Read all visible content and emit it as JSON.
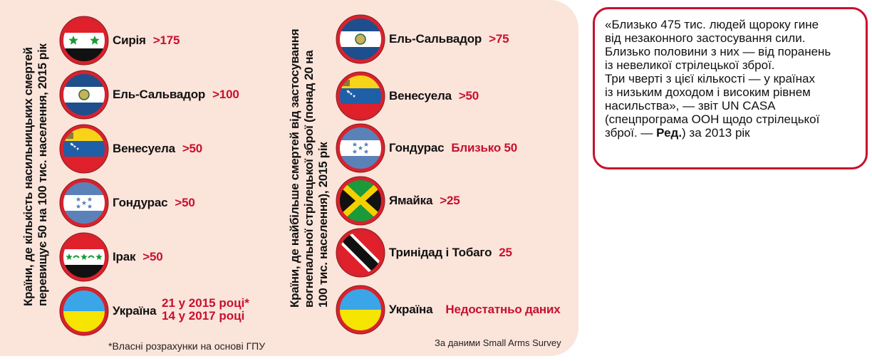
{
  "left": {
    "title_lines": [
      "Країни, де кількість насильницьких смертей",
      "перевищує 50 на 100 тис. населення, 2015 рік"
    ],
    "items": [
      {
        "country": "Сирія",
        "value": ">175",
        "flag": "syria-flag"
      },
      {
        "country": "Ель-Сальвадор",
        "value": ">100",
        "flag": "el-salvador-flag"
      },
      {
        "country": "Венесуела",
        "value": ">50",
        "flag": "venezuela-flag"
      },
      {
        "country": "Гондурас",
        "value": ">50",
        "flag": "honduras-flag"
      },
      {
        "country": "Ірак",
        "value": ">50",
        "flag": "iraq-flag"
      },
      {
        "country": "Україна",
        "value_lines": [
          "21 у 2015 році*",
          "14 у 2017 році"
        ],
        "flag": "ukraine-flag"
      }
    ],
    "footnote": "*Власні розрахунки на основі ГПУ"
  },
  "right": {
    "title_lines": [
      "Країни, де найбільше смертей від застосування",
      "вогнепальної стрілецької зброї (понад 20 на",
      "100 тис. населення), 2015 рік"
    ],
    "items": [
      {
        "country": "Ель-Сальвадор",
        "value": ">75",
        "flag": "el-salvador-flag"
      },
      {
        "country": "Венесуела",
        "value": ">50",
        "flag": "venezuela-flag"
      },
      {
        "country": "Гондурас",
        "value": "Близько 50",
        "flag": "honduras-flag"
      },
      {
        "country": "Ямайка",
        "value": ">25",
        "flag": "jamaica-flag"
      },
      {
        "country": "Тринідад і Тобаго",
        "value": "25",
        "flag": "trinidad-flag"
      },
      {
        "country": "Україна",
        "value": "Недостатньо даних",
        "flag": "ukraine-flag"
      }
    ],
    "source": "За даними  Small Arms Survey"
  },
  "quote": {
    "lines": [
      "«Близько 475 тис. людей щороку гине",
      "від незаконного застосування сили.",
      "Близько половини з них — від поранень",
      "із невеликої стрілецької зброї.",
      "Три чверті з цієї кількості — у країнах",
      "із низьким доходом і високим рівнем",
      "насильства», — звіт UN CASA",
      "(спецпрограма ООН щодо стрілецької"
    ],
    "last_pre": "зброї. — ",
    "last_bold": "Ред.",
    "last_post": ") за 2013 рік"
  },
  "colors": {
    "accent": "#c8102e",
    "panel": "#fbe4da"
  }
}
